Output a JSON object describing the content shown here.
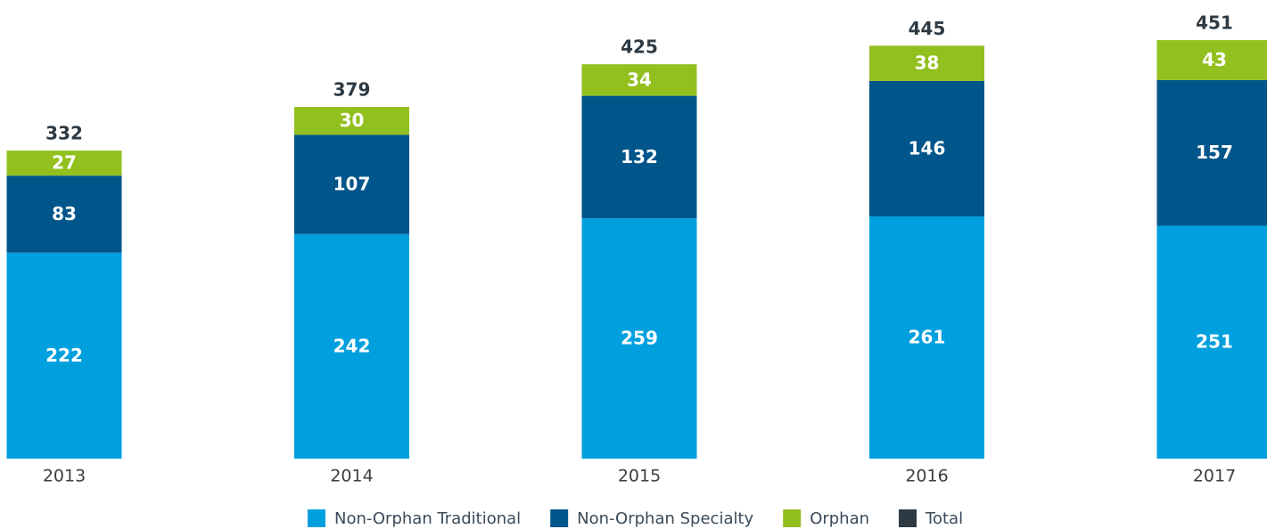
{
  "chart_data": {
    "type": "stacked_bar",
    "categories": [
      "2013",
      "2014",
      "2015",
      "2016",
      "2017"
    ],
    "series": [
      {
        "name": "Non-Orphan Traditional",
        "color": "#00a0df",
        "values": [
          222,
          242,
          259,
          261,
          251
        ]
      },
      {
        "name": "Non-Orphan Specialty",
        "color": "#00558a",
        "values": [
          83,
          107,
          132,
          146,
          157
        ]
      },
      {
        "name": "Orphan",
        "color": "#92c01f",
        "values": [
          27,
          30,
          34,
          38,
          43
        ]
      }
    ],
    "total": {
      "name": "Total",
      "color": "#2d3a44",
      "values": [
        332,
        379,
        425,
        445,
        451
      ]
    },
    "legend": "bottom"
  }
}
